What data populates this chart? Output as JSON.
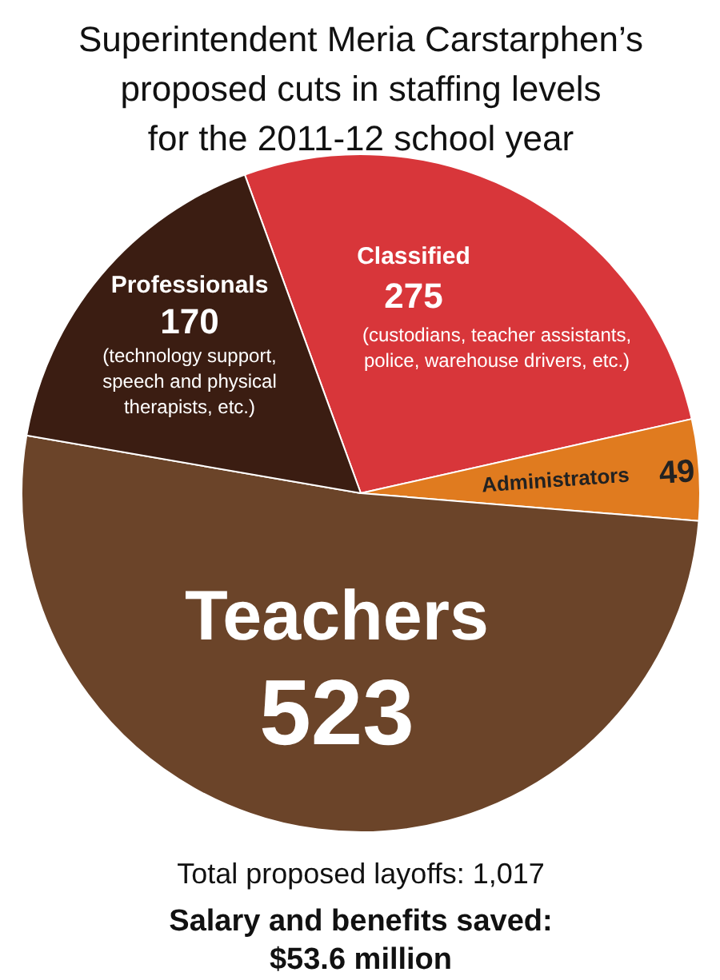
{
  "chart_data": {
    "type": "pie",
    "title": "Superintendent Meria Carstarphen’s\nproposed cuts in staffing levels\nfor the 2011-12 school year",
    "categories": [
      "Classified",
      "Administrators",
      "Teachers",
      "Professionals"
    ],
    "values": [
      275,
      49,
      523,
      170
    ],
    "colors": [
      "#d8363a",
      "#e07b1f",
      "#6b4429",
      "#3b1d12"
    ],
    "data_labels": true,
    "annotations": [
      "(custodians, teacher assistants,\npolice, warehouse drivers, etc.)",
      "(technology support,\nspeech and physical\ntherapists, etc.)",
      "Total proposed layoffs: 1,017",
      "Salary and benefits saved:\n$53.6 million"
    ]
  }
}
